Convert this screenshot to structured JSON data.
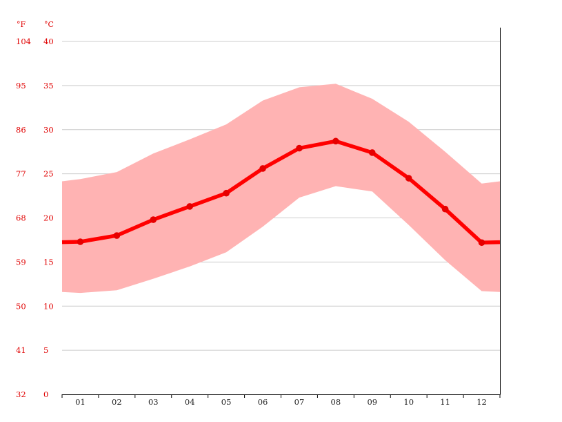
{
  "chart_data": {
    "type": "line",
    "unit_f": "°F",
    "unit_c": "°C",
    "categories": [
      "01",
      "02",
      "03",
      "04",
      "05",
      "06",
      "07",
      "08",
      "09",
      "10",
      "11",
      "12"
    ],
    "y_ticks_c": [
      "40",
      "35",
      "30",
      "25",
      "20",
      "15",
      "10",
      "5",
      "0"
    ],
    "y_ticks_f": [
      "104",
      "95",
      "86",
      "77",
      "68",
      "59",
      "50",
      "41",
      "32"
    ],
    "ylim": [
      0,
      40
    ],
    "grid": true,
    "series": [
      {
        "role": "mean",
        "values": [
          17.3,
          18.0,
          19.8,
          21.3,
          22.8,
          25.6,
          27.9,
          28.7,
          27.4,
          24.5,
          21.0,
          17.2
        ]
      },
      {
        "role": "max",
        "values": [
          24.4,
          25.2,
          27.3,
          28.9,
          30.6,
          33.3,
          34.8,
          35.2,
          33.5,
          30.9,
          27.5,
          23.9
        ]
      },
      {
        "role": "min",
        "values": [
          11.5,
          11.8,
          13.1,
          14.5,
          16.1,
          19.0,
          22.3,
          23.6,
          23.0,
          19.2,
          15.2,
          11.7
        ]
      }
    ],
    "colors": {
      "line": "#ff0000",
      "band": "#ffb3b3",
      "grid": "#cccccc",
      "axis_text": "#e00000",
      "x_text": "#222222"
    }
  }
}
